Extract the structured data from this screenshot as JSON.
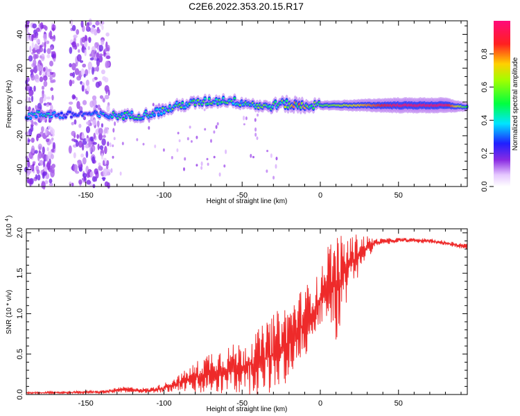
{
  "title": "C2E6.2022.353.20.15.R17",
  "colors": {
    "snr_line": "#ee2a2a",
    "axis": "#000000",
    "background": "#ffffff"
  },
  "chart_data": [
    {
      "type": "heatmap",
      "xlabel": "Height of straight line (km)",
      "ylabel": "Frequency (Hz)",
      "xlim": [
        -188,
        94
      ],
      "ylim": [
        -50,
        48
      ],
      "xticks": [
        -150,
        -100,
        -50,
        0,
        50
      ],
      "xtick_labels": [
        "-150",
        "-100",
        "-50",
        "0",
        "50"
      ],
      "yticks": [
        -40,
        -20,
        0,
        20,
        40
      ],
      "ytick_labels": [
        "-40",
        "-20",
        "0",
        "20",
        "40"
      ],
      "colorbar": {
        "label": "Normalized spectral amplitude",
        "range": [
          0,
          1
        ],
        "ticks": [
          0.0,
          0.2,
          0.4,
          0.6,
          0.8
        ],
        "tick_labels": [
          "0.0",
          "0.2",
          "0.4",
          "0.6",
          "0.8"
        ],
        "colormap": "rainbow-white-purple-blue-cyan-green-yellow-red-magenta"
      },
      "ridge": [
        {
          "x": -185,
          "f": -8,
          "amp": 0.45
        },
        {
          "x": -175,
          "f": -7,
          "amp": 0.5
        },
        {
          "x": -165,
          "f": -8,
          "amp": 0.35
        },
        {
          "x": -150,
          "f": -7,
          "amp": 0.3
        },
        {
          "x": -140,
          "f": -8,
          "amp": 0.45
        },
        {
          "x": -130,
          "f": -8,
          "amp": 0.55
        },
        {
          "x": -115,
          "f": -8,
          "amp": 0.55
        },
        {
          "x": -100,
          "f": -5,
          "amp": 0.6
        },
        {
          "x": -90,
          "f": -2,
          "amp": 0.6
        },
        {
          "x": -75,
          "f": 0,
          "amp": 0.6
        },
        {
          "x": -60,
          "f": 1,
          "amp": 0.6
        },
        {
          "x": -45,
          "f": -1,
          "amp": 0.6
        },
        {
          "x": -35,
          "f": -3,
          "amp": 0.65
        },
        {
          "x": -25,
          "f": -1,
          "amp": 0.65
        },
        {
          "x": -15,
          "f": -2,
          "amp": 0.9
        },
        {
          "x": 0,
          "f": -2,
          "amp": 0.55
        },
        {
          "x": 20,
          "f": -2,
          "amp": 0.7
        },
        {
          "x": 50,
          "f": -2,
          "amp": 0.95
        },
        {
          "x": 80,
          "f": -2,
          "amp": 0.95
        },
        {
          "x": 94,
          "f": -3,
          "amp": 0.5
        }
      ],
      "noise_bands_x": [
        [
          -188,
          -170
        ],
        [
          -160,
          -135
        ]
      ]
    },
    {
      "type": "line",
      "xlabel": "Height of straight line (km)",
      "ylabel": "SNR (10 * v/v)",
      "yscale_label": "(x10",
      "yscale_exponent": "4",
      "xlim": [
        -188,
        94
      ],
      "ylim": [
        0,
        2.05
      ],
      "xticks": [
        -150,
        -100,
        -50,
        0,
        50
      ],
      "xtick_labels": [
        "-150",
        "-100",
        "-50",
        "0",
        "50"
      ],
      "yticks": [
        0.0,
        0.5,
        1.0,
        1.5,
        2.0
      ],
      "ytick_labels": [
        "0.0",
        "0.5",
        "1.0",
        "1.5",
        "2.0"
      ],
      "envelope": [
        {
          "x": -188,
          "mean": 0.02,
          "amp": 0.01
        },
        {
          "x": -140,
          "mean": 0.03,
          "amp": 0.02
        },
        {
          "x": -125,
          "mean": 0.06,
          "amp": 0.04
        },
        {
          "x": -110,
          "mean": 0.05,
          "amp": 0.03
        },
        {
          "x": -100,
          "mean": 0.08,
          "amp": 0.06
        },
        {
          "x": -90,
          "mean": 0.15,
          "amp": 0.1
        },
        {
          "x": -80,
          "mean": 0.2,
          "amp": 0.2
        },
        {
          "x": -70,
          "mean": 0.28,
          "amp": 0.28
        },
        {
          "x": -60,
          "mean": 0.3,
          "amp": 0.3
        },
        {
          "x": -50,
          "mean": 0.33,
          "amp": 0.33
        },
        {
          "x": -40,
          "mean": 0.4,
          "amp": 0.4
        },
        {
          "x": -30,
          "mean": 0.5,
          "amp": 0.5
        },
        {
          "x": -20,
          "mean": 0.65,
          "amp": 0.5
        },
        {
          "x": -10,
          "mean": 0.9,
          "amp": 0.45
        },
        {
          "x": 0,
          "mean": 1.15,
          "amp": 0.35
        },
        {
          "x": 5,
          "mean": 1.45,
          "amp": 0.45
        },
        {
          "x": 10,
          "mean": 1.3,
          "amp": 0.7
        },
        {
          "x": 15,
          "mean": 1.5,
          "amp": 0.45
        },
        {
          "x": 25,
          "mean": 1.75,
          "amp": 0.25
        },
        {
          "x": 35,
          "mean": 1.88,
          "amp": 0.05
        },
        {
          "x": 50,
          "mean": 1.91,
          "amp": 0.03
        },
        {
          "x": 70,
          "mean": 1.9,
          "amp": 0.03
        },
        {
          "x": 94,
          "mean": 1.83,
          "amp": 0.04
        }
      ]
    }
  ]
}
